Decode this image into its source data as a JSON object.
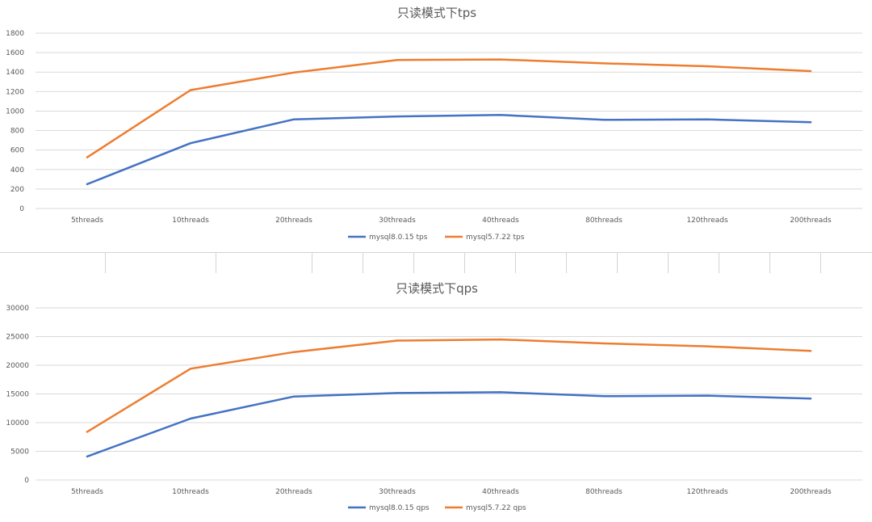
{
  "chart_data": [
    {
      "type": "line",
      "title": "只读模式下tps",
      "categories": [
        "5threads",
        "10threads",
        "20threads",
        "30threads",
        "40threads",
        "80threads",
        "120threads",
        "200threads"
      ],
      "ylim": [
        0,
        1800
      ],
      "yticks": [
        "0",
        "200",
        "400",
        "600",
        "800",
        "1000",
        "1200",
        "1400",
        "1600",
        "1800"
      ],
      "grid": true,
      "legend_position": "bottom",
      "series": [
        {
          "name": "mysql8.0.15 tps",
          "color": "#4472C4",
          "values": [
            250,
            670,
            915,
            945,
            960,
            910,
            915,
            885
          ]
        },
        {
          "name": "mysql5.7.22 tps",
          "color": "#ED7D31",
          "values": [
            525,
            1215,
            1395,
            1525,
            1530,
            1490,
            1460,
            1410
          ]
        }
      ]
    },
    {
      "type": "line",
      "title": "只读模式下qps",
      "categories": [
        "5threads",
        "10threads",
        "20threads",
        "30threads",
        "40threads",
        "80threads",
        "120threads",
        "200threads"
      ],
      "ylim": [
        0,
        30000
      ],
      "yticks": [
        "0",
        "5000",
        "10000",
        "15000",
        "20000",
        "25000",
        "30000"
      ],
      "grid": true,
      "legend_position": "bottom",
      "series": [
        {
          "name": "mysql8.0.15 qps",
          "color": "#4472C4",
          "values": [
            4100,
            10700,
            14550,
            15150,
            15300,
            14600,
            14700,
            14200
          ]
        },
        {
          "name": "mysql5.7.22 qps",
          "color": "#ED7D31",
          "values": [
            8400,
            19400,
            22300,
            24300,
            24500,
            23800,
            23300,
            22500
          ]
        }
      ]
    }
  ]
}
